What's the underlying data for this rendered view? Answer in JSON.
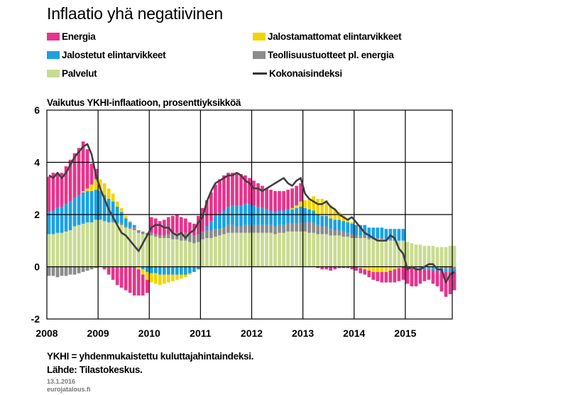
{
  "chart_data": {
    "type": "bar",
    "title": "Inflaatio yhä negatiivinen",
    "subtitle": "Vaikutus YKHI-inflaatioon, prosenttiyksikköä",
    "ylim": [
      -2,
      6
    ],
    "yticks": [
      "-2",
      "0",
      "2",
      "4",
      "6"
    ],
    "xlim": [
      2008,
      2015.917
    ],
    "xticks": [
      "2008",
      "2009",
      "2010",
      "2011",
      "2012",
      "2013",
      "2014",
      "2015"
    ],
    "grid": "horizontal at 2 and 4, vertical at year starts",
    "legend_placement": "top",
    "legend": [
      {
        "label": "Energia",
        "color": "#E6348C",
        "kind": "bar"
      },
      {
        "label": "Jalostamattomat elintarvikkeet",
        "color": "#F2D400",
        "kind": "bar"
      },
      {
        "label": "Jalostetut elintarvikkeet",
        "color": "#1BA1E2",
        "kind": "bar"
      },
      {
        "label": "Teollisuustuotteet pl. energia",
        "color": "#8C8C8C",
        "kind": "bar"
      },
      {
        "label": "Palvelut",
        "color": "#C9DB90",
        "kind": "bar"
      },
      {
        "label": "Kokonaisindeksi",
        "color": "#404040",
        "kind": "line"
      }
    ],
    "periods_monthly_start": "2008-01",
    "series": [
      {
        "name": "Palvelut",
        "color": "#C9DB90",
        "values": [
          1.25,
          1.25,
          1.3,
          1.3,
          1.35,
          1.4,
          1.55,
          1.6,
          1.65,
          1.7,
          1.7,
          1.8,
          1.8,
          1.75,
          1.7,
          1.7,
          1.65,
          1.6,
          1.5,
          1.45,
          1.4,
          1.3,
          1.25,
          1.2,
          1.2,
          1.15,
          1.1,
          1.1,
          1.1,
          1.05,
          1.05,
          1.0,
          1.0,
          0.95,
          0.9,
          0.95,
          1.05,
          1.1,
          1.1,
          1.15,
          1.2,
          1.25,
          1.3,
          1.3,
          1.3,
          1.3,
          1.3,
          1.3,
          1.3,
          1.3,
          1.3,
          1.3,
          1.3,
          1.25,
          1.3,
          1.3,
          1.35,
          1.35,
          1.35,
          1.35,
          1.35,
          1.3,
          1.3,
          1.25,
          1.25,
          1.25,
          1.2,
          1.2,
          1.2,
          1.15,
          1.15,
          1.1,
          1.1,
          1.1,
          1.1,
          1.05,
          1.05,
          1.05,
          1.05,
          1.0,
          1.0,
          1.0,
          1.0,
          1.0,
          0.95,
          0.9,
          0.85,
          0.85,
          0.8,
          0.8,
          0.8,
          0.75,
          0.75,
          0.75,
          0.8,
          0.8
        ]
      },
      {
        "name": "Teollisuustuotteet pl. energia",
        "color": "#8C8C8C",
        "values": [
          -0.35,
          -0.35,
          -0.4,
          -0.35,
          -0.35,
          -0.3,
          -0.3,
          -0.25,
          -0.2,
          -0.15,
          -0.1,
          -0.05,
          0.0,
          0.0,
          0.0,
          0.05,
          0.05,
          0.05,
          0.05,
          0.05,
          0.1,
          0.1,
          0.1,
          0.1,
          0.1,
          0.1,
          0.1,
          0.1,
          0.15,
          0.2,
          0.25,
          0.25,
          0.3,
          0.35,
          0.3,
          0.3,
          0.3,
          0.3,
          0.3,
          0.3,
          0.25,
          0.25,
          0.3,
          0.3,
          0.25,
          0.25,
          0.3,
          0.3,
          0.3,
          0.3,
          0.3,
          0.3,
          0.3,
          0.3,
          0.3,
          0.3,
          0.3,
          0.3,
          0.3,
          0.35,
          0.35,
          0.4,
          0.4,
          0.35,
          0.3,
          0.3,
          0.25,
          0.2,
          0.2,
          0.2,
          0.15,
          0.15,
          0.1,
          0.1,
          0.1,
          0.05,
          0.05,
          0.05,
          0.05,
          0.05,
          0.05,
          0.0,
          0.0,
          0.0,
          -0.05,
          -0.05,
          -0.05,
          -0.05,
          -0.05,
          -0.05,
          -0.05,
          -0.05,
          -0.05,
          -0.1,
          -0.1,
          -0.1
        ]
      },
      {
        "name": "Jalostetut elintarvikkeet",
        "color": "#1BA1E2",
        "values": [
          0.85,
          0.9,
          0.95,
          1.0,
          1.05,
          1.1,
          1.1,
          1.15,
          1.2,
          1.2,
          1.2,
          1.15,
          1.1,
          1.0,
          0.9,
          0.75,
          0.6,
          0.45,
          0.3,
          0.2,
          0.1,
          0.0,
          -0.1,
          -0.2,
          -0.25,
          -0.25,
          -0.3,
          -0.3,
          -0.3,
          -0.3,
          -0.3,
          -0.3,
          -0.3,
          -0.25,
          -0.2,
          -0.1,
          0.0,
          0.15,
          0.35,
          0.5,
          0.6,
          0.65,
          0.7,
          0.75,
          0.8,
          0.8,
          0.8,
          0.8,
          0.75,
          0.7,
          0.65,
          0.6,
          0.55,
          0.55,
          0.55,
          0.55,
          0.55,
          0.55,
          0.6,
          0.6,
          0.55,
          0.5,
          0.45,
          0.4,
          0.4,
          0.4,
          0.4,
          0.4,
          0.4,
          0.4,
          0.4,
          0.4,
          0.4,
          0.4,
          0.4,
          0.4,
          0.4,
          0.4,
          0.4,
          0.4,
          0.4,
          0.45,
          0.45,
          0.45,
          0.0,
          0.0,
          -0.05,
          -0.05,
          -0.05,
          -0.05,
          -0.1,
          -0.1,
          -0.1,
          -0.1,
          -0.1,
          -0.1
        ]
      },
      {
        "name": "Jalostamattomat elintarvikkeet",
        "color": "#F2D400",
        "values": [
          0.0,
          0.0,
          0.0,
          0.0,
          0.0,
          0.0,
          0.0,
          0.0,
          0.05,
          0.1,
          0.25,
          0.4,
          0.45,
          0.45,
          0.4,
          0.3,
          0.2,
          0.15,
          0.1,
          0.05,
          0.0,
          -0.1,
          -0.2,
          -0.3,
          -0.35,
          -0.4,
          -0.4,
          -0.35,
          -0.3,
          -0.25,
          -0.2,
          -0.15,
          -0.1,
          -0.05,
          0.0,
          0.0,
          0.0,
          0.0,
          0.0,
          0.0,
          0.0,
          0.0,
          0.0,
          0.0,
          0.0,
          0.0,
          0.0,
          0.0,
          0.0,
          0.0,
          0.0,
          0.0,
          0.0,
          0.0,
          0.0,
          0.0,
          0.0,
          0.05,
          0.1,
          0.2,
          0.3,
          0.4,
          0.55,
          0.6,
          0.65,
          0.6,
          0.5,
          0.4,
          0.3,
          0.2,
          0.1,
          0.05,
          0.0,
          -0.05,
          -0.1,
          -0.15,
          -0.2,
          -0.2,
          -0.2,
          -0.2,
          -0.15,
          -0.1,
          -0.05,
          0.0,
          0.0,
          0.0,
          0.0,
          0.0,
          0.0,
          0.0,
          0.0,
          0.0,
          0.0,
          0.0,
          0.0,
          0.0
        ]
      },
      {
        "name": "Energia",
        "color": "#E6348C",
        "values": [
          1.35,
          1.45,
          1.3,
          1.3,
          1.45,
          1.6,
          1.7,
          1.8,
          1.9,
          1.5,
          0.8,
          0.4,
          0.0,
          -0.1,
          -0.3,
          -0.5,
          -0.7,
          -0.8,
          -0.9,
          -1.0,
          -1.1,
          -1.0,
          -0.8,
          -0.5,
          0.6,
          0.6,
          0.55,
          0.6,
          0.65,
          0.7,
          0.7,
          0.65,
          0.55,
          0.4,
          0.45,
          0.7,
          0.9,
          1.0,
          1.1,
          1.2,
          1.3,
          1.35,
          1.3,
          1.25,
          1.2,
          1.2,
          1.1,
          1.0,
          0.95,
          0.9,
          0.85,
          0.8,
          0.8,
          0.8,
          0.75,
          0.75,
          0.75,
          0.75,
          0.75,
          0.7,
          0.0,
          0.0,
          0.0,
          -0.05,
          -0.1,
          -0.1,
          -0.15,
          -0.1,
          -0.05,
          -0.05,
          -0.05,
          -0.1,
          -0.15,
          -0.2,
          -0.2,
          -0.25,
          -0.3,
          -0.35,
          -0.4,
          -0.4,
          -0.45,
          -0.5,
          -0.5,
          -0.5,
          -0.6,
          -0.7,
          -0.65,
          -0.55,
          -0.45,
          -0.4,
          -0.5,
          -0.6,
          -0.8,
          -0.95,
          -0.85,
          -0.7
        ]
      }
    ],
    "line": {
      "name": "Kokonaisindeksi",
      "color": "#404040",
      "values": [
        3.5,
        3.4,
        3.6,
        3.4,
        3.6,
        3.9,
        4.2,
        4.4,
        4.6,
        4.7,
        4.3,
        3.5,
        3.0,
        2.6,
        2.2,
        1.9,
        1.6,
        1.3,
        1.2,
        1.0,
        0.8,
        0.6,
        0.9,
        1.2,
        1.5,
        1.6,
        1.6,
        1.5,
        1.5,
        1.3,
        1.2,
        1.3,
        1.1,
        1.3,
        1.4,
        1.7,
        1.9,
        2.5,
        2.9,
        3.2,
        3.3,
        3.4,
        3.5,
        3.5,
        3.6,
        3.5,
        3.3,
        3.2,
        3.0,
        3.0,
        2.9,
        3.0,
        3.1,
        3.2,
        3.3,
        3.4,
        3.2,
        3.1,
        3.3,
        3.4,
        2.8,
        2.6,
        2.5,
        2.4,
        2.4,
        2.5,
        2.3,
        2.2,
        2.0,
        1.9,
        1.8,
        1.9,
        1.7,
        1.5,
        1.3,
        1.2,
        1.1,
        1.0,
        1.0,
        1.0,
        1.2,
        1.1,
        0.7,
        0.5,
        -0.1,
        0.0,
        -0.1,
        -0.1,
        0.0,
        0.1,
        0.1,
        -0.1,
        -0.1,
        -0.6,
        -0.3,
        -0.2
      ]
    }
  },
  "footer": {
    "note": "YKHI = yhdenmukaistettu  kuluttajahintaindeksi.",
    "source": "Lähde:  Tilastokeskus.",
    "date": "13.1.2016",
    "site": "eurojatalous.fi"
  }
}
